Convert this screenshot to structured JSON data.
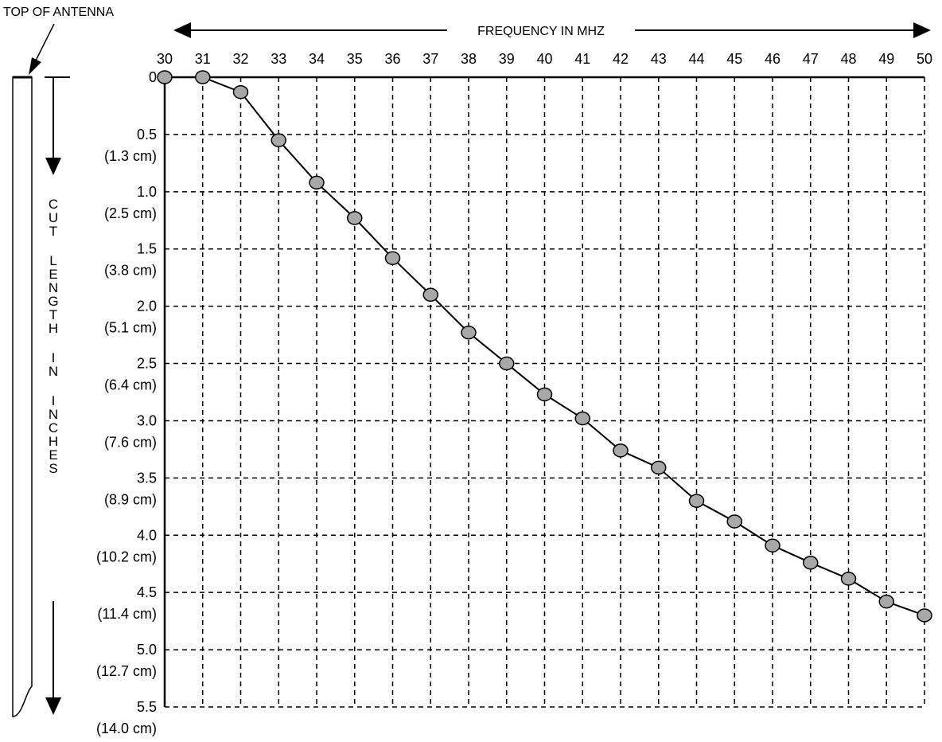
{
  "chart_data": {
    "type": "line",
    "xlabel": "FREQUENCY IN MHZ",
    "ylabel": "CUT LENGTH IN INCHES",
    "antenna_label": "TOP OF ANTENNA",
    "xlim": [
      30,
      50
    ],
    "ylim": [
      0,
      5.5
    ],
    "x_ticks": [
      30,
      31,
      32,
      33,
      34,
      35,
      36,
      37,
      38,
      39,
      40,
      41,
      42,
      43,
      44,
      45,
      46,
      47,
      48,
      49,
      50
    ],
    "y_ticks": [
      {
        "value": 0,
        "label": "0",
        "metric": ""
      },
      {
        "value": 0.5,
        "label": "0.5",
        "metric": "(1.3 cm)"
      },
      {
        "value": 1.0,
        "label": "1.0",
        "metric": "(2.5 cm)"
      },
      {
        "value": 1.5,
        "label": "1.5",
        "metric": "(3.8 cm)"
      },
      {
        "value": 2.0,
        "label": "2.0",
        "metric": "(5.1 cm)"
      },
      {
        "value": 2.5,
        "label": "2.5",
        "metric": "(6.4 cm)"
      },
      {
        "value": 3.0,
        "label": "3.0",
        "metric": "(7.6 cm)"
      },
      {
        "value": 3.5,
        "label": "3.5",
        "metric": "(8.9 cm)"
      },
      {
        "value": 4.0,
        "label": "4.0",
        "metric": "(10.2 cm)"
      },
      {
        "value": 4.5,
        "label": "4.5",
        "metric": "(11.4 cm)"
      },
      {
        "value": 5.0,
        "label": "5.0",
        "metric": "(12.7 cm)"
      },
      {
        "value": 5.5,
        "label": "5.5",
        "metric": "(14.0 cm)"
      }
    ],
    "grid": true,
    "y_inverted": true,
    "series": [
      {
        "x": [
          30,
          31,
          32,
          33,
          34,
          35,
          36,
          37,
          38,
          39,
          40,
          41,
          42,
          43,
          44,
          45,
          46,
          47,
          48,
          49,
          50
        ],
        "y": [
          0,
          0,
          0.13,
          0.55,
          0.92,
          1.23,
          1.58,
          1.9,
          2.23,
          2.5,
          2.77,
          2.98,
          3.26,
          3.41,
          3.7,
          3.88,
          4.09,
          4.24,
          4.38,
          4.58,
          4.7
        ]
      }
    ],
    "colors": {
      "line": "#000000",
      "marker_fill": "#a8a8a8",
      "grid": "#000000"
    }
  }
}
